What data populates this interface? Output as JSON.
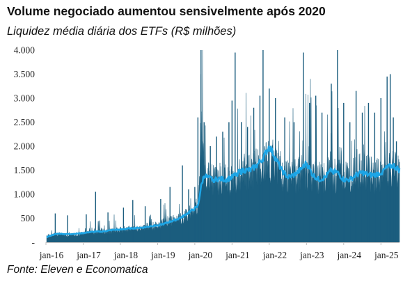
{
  "title": "Volume negociado aumentou sensivelmente após 2020",
  "subtitle": "Liquidez média diária dos ETFs (R$ milhões)",
  "source": "Fonte: Eleven e Economatica",
  "colors": {
    "area": "#1b5d7e",
    "line": "#1da5e6",
    "axis": "#bfbfbf"
  },
  "chart_data": {
    "type": "area",
    "series": [
      {
        "style": "area",
        "description_unit": "R$ milhões"
      },
      {
        "style": "line"
      }
    ],
    "x_ticks": [
      "jan-16",
      "jan-17",
      "jan-18",
      "jan-19",
      "jan-20",
      "jan-21",
      "jan-22",
      "jan-23",
      "jan-24",
      "jan-25"
    ],
    "x_range": [
      "2016-01",
      "2025-07"
    ],
    "y_ticks": [
      "-",
      "500",
      "1.000",
      "1.500",
      "2.000",
      "2.500",
      "3.000",
      "3.500",
      "4.000"
    ],
    "ylim": [
      0,
      4000
    ],
    "grid": false,
    "monthly": {
      "x": [
        "2016-01",
        "2016-03",
        "2016-05",
        "2016-07",
        "2016-09",
        "2016-11",
        "2017-01",
        "2017-03",
        "2017-05",
        "2017-07",
        "2017-09",
        "2017-11",
        "2018-01",
        "2018-03",
        "2018-05",
        "2018-07",
        "2018-09",
        "2018-11",
        "2019-01",
        "2019-03",
        "2019-05",
        "2019-07",
        "2019-09",
        "2019-11",
        "2020-01",
        "2020-02",
        "2020-03",
        "2020-04",
        "2020-05",
        "2020-07",
        "2020-09",
        "2020-11",
        "2021-01",
        "2021-03",
        "2021-05",
        "2021-07",
        "2021-09",
        "2021-11",
        "2022-01",
        "2022-03",
        "2022-05",
        "2022-07",
        "2022-09",
        "2022-11",
        "2023-01",
        "2023-03",
        "2023-05",
        "2023-07",
        "2023-09",
        "2023-11",
        "2024-01",
        "2024-03",
        "2024-05",
        "2024-07",
        "2024-09",
        "2024-11",
        "2025-01",
        "2025-03",
        "2025-05",
        "2025-07"
      ],
      "daily_base": [
        130,
        160,
        170,
        150,
        160,
        170,
        180,
        200,
        220,
        230,
        230,
        250,
        260,
        270,
        300,
        280,
        320,
        340,
        360,
        400,
        440,
        470,
        520,
        600,
        720,
        760,
        2300,
        1700,
        1350,
        1300,
        1350,
        1300,
        1350,
        1500,
        1500,
        1450,
        1600,
        1750,
        1750,
        1700,
        1500,
        1400,
        1400,
        1450,
        1550,
        1400,
        1350,
        1400,
        1450,
        1400,
        1350,
        1350,
        1450,
        1500,
        1450,
        1400,
        1450,
        1500,
        1550,
        1500
      ],
      "moving_avg": [
        100,
        150,
        180,
        170,
        170,
        180,
        190,
        210,
        220,
        220,
        240,
        260,
        260,
        280,
        290,
        300,
        310,
        340,
        350,
        380,
        430,
        470,
        530,
        620,
        700,
        750,
        1150,
        1400,
        1350,
        1300,
        1320,
        1300,
        1350,
        1450,
        1500,
        1500,
        1600,
        1750,
        2000,
        1750,
        1500,
        1350,
        1400,
        1500,
        1650,
        1400,
        1300,
        1350,
        1500,
        1450,
        1300,
        1300,
        1400,
        1450,
        1400,
        1400,
        1450,
        1550,
        1600,
        1500
      ]
    },
    "spikes": [
      {
        "x": "2016-04",
        "y": 600
      },
      {
        "x": "2016-08",
        "y": 560
      },
      {
        "x": "2017-02",
        "y": 580
      },
      {
        "x": "2017-05",
        "y": 1050
      },
      {
        "x": "2017-09",
        "y": 620
      },
      {
        "x": "2018-02",
        "y": 720
      },
      {
        "x": "2018-05",
        "y": 880
      },
      {
        "x": "2018-09",
        "y": 750
      },
      {
        "x": "2019-02",
        "y": 900
      },
      {
        "x": "2019-05",
        "y": 1150
      },
      {
        "x": "2019-09",
        "y": 1600
      },
      {
        "x": "2019-11",
        "y": 1100
      },
      {
        "x": "2020-01",
        "y": 1150
      },
      {
        "x": "2020-02",
        "y": 2600
      },
      {
        "x": "2020-03",
        "y": 4000
      },
      {
        "x": "2020-03",
        "y": 3500
      },
      {
        "x": "2020-04",
        "y": 2500
      },
      {
        "x": "2020-06",
        "y": 2000
      },
      {
        "x": "2020-08",
        "y": 2200
      },
      {
        "x": "2020-10",
        "y": 2300
      },
      {
        "x": "2020-12",
        "y": 2500
      },
      {
        "x": "2021-01",
        "y": 2950
      },
      {
        "x": "2021-02",
        "y": 3950
      },
      {
        "x": "2021-04",
        "y": 2500
      },
      {
        "x": "2021-06",
        "y": 2400
      },
      {
        "x": "2021-08",
        "y": 2800
      },
      {
        "x": "2021-10",
        "y": 3050
      },
      {
        "x": "2021-11",
        "y": 4000
      },
      {
        "x": "2022-01",
        "y": 3200
      },
      {
        "x": "2022-03",
        "y": 3000
      },
      {
        "x": "2022-06",
        "y": 2600
      },
      {
        "x": "2022-09",
        "y": 2500
      },
      {
        "x": "2022-12",
        "y": 3950
      },
      {
        "x": "2023-02",
        "y": 2900
      },
      {
        "x": "2023-04",
        "y": 3050
      },
      {
        "x": "2023-06",
        "y": 2700
      },
      {
        "x": "2023-09",
        "y": 3300
      },
      {
        "x": "2023-11",
        "y": 4000
      },
      {
        "x": "2024-01",
        "y": 2900
      },
      {
        "x": "2024-03",
        "y": 2500
      },
      {
        "x": "2024-05",
        "y": 3150
      },
      {
        "x": "2024-07",
        "y": 2700
      },
      {
        "x": "2024-09",
        "y": 2900
      },
      {
        "x": "2024-11",
        "y": 2700
      },
      {
        "x": "2025-01",
        "y": 3000
      },
      {
        "x": "2025-03",
        "y": 3450
      },
      {
        "x": "2025-04",
        "y": 3500
      },
      {
        "x": "2025-05",
        "y": 2600
      },
      {
        "x": "2025-06",
        "y": 2100
      }
    ]
  }
}
